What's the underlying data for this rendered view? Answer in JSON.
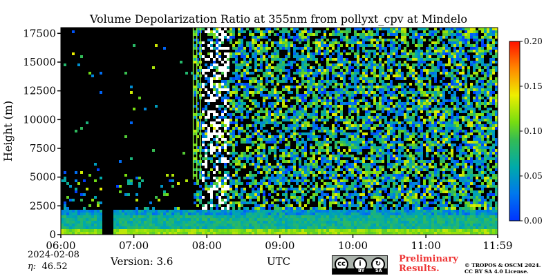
{
  "chart_data": {
    "type": "heatmap",
    "title": "Volume Depolarization Ratio at 355nm from pollyxt_cpv at Mindelo",
    "ylabel": "Height (m)",
    "xlabel": "UTC",
    "x_range": [
      "06:00",
      "11:59"
    ],
    "ylim": [
      0,
      18000
    ],
    "x_ticks": [
      "06:00",
      "07:00",
      "08:00",
      "09:00",
      "10:00",
      "11:00",
      "11:59"
    ],
    "y_ticks": [
      "0",
      "2500",
      "5000",
      "7500",
      "10000",
      "12500",
      "15000",
      "17500"
    ],
    "colorbar": {
      "range": [
        0.0,
        0.2
      ],
      "ticks": [
        "0.00",
        "0.05",
        "0.10",
        "0.15",
        "0.20"
      ],
      "colormap": "jet"
    },
    "layers": [
      {
        "height_range_m": [
          0,
          600
        ],
        "depol_ratio_approx": 0.09,
        "description_visible": "green band near surface"
      },
      {
        "height_range_m": [
          600,
          1700
        ],
        "depol_ratio_approx": 0.04
      },
      {
        "height_range_m": [
          1700,
          2200
        ],
        "depol_ratio_approx": 0.03
      }
    ],
    "gaps_no_data": [
      [
        "06:32",
        "06:41"
      ]
    ],
    "colors": {
      "background_no_signal": "#000000",
      "low": "#0000cc",
      "mid": "#00aa66",
      "high": "#66dd22"
    }
  },
  "footer": {
    "date": "2024-02-08",
    "eta_label": "η:",
    "eta_value": "46.52",
    "version": "Version: 3.6",
    "x_unit": "UTC",
    "preliminary_line1": "Preliminary",
    "preliminary_line2": "Results.",
    "copyright_line1": "© TROPOS & OSCM 2024.",
    "copyright_line2": "CC BY SA 4.0 License.",
    "license_icon": "cc-by-sa-icon",
    "license_tags": [
      "BY",
      "SA"
    ]
  }
}
